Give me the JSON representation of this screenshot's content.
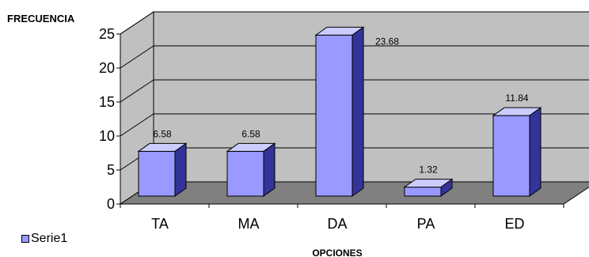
{
  "chart_data": {
    "type": "bar",
    "ylabel": "FRECUENCIA",
    "xlabel": "OPCIONES",
    "categories": [
      "TA",
      "MA",
      "DA",
      "PA",
      "ED"
    ],
    "series": [
      {
        "name": "Serie1",
        "values": [
          6.58,
          6.58,
          23.68,
          1.32,
          11.84
        ]
      }
    ],
    "data_labels": [
      "6.58",
      "6.58",
      "23.68",
      "1.32",
      "11.84"
    ],
    "y_ticks": [
      "0",
      "5",
      "10",
      "15",
      "20",
      "25"
    ],
    "ylim": [
      0,
      25
    ],
    "grid": true,
    "legend_position": "bottom-left",
    "colors": {
      "bar_front": "#9999ff",
      "bar_top": "#ccccff",
      "bar_side": "#333399",
      "wall": "#c0c0c0",
      "floor": "#808080",
      "gridline": "#000000"
    }
  }
}
